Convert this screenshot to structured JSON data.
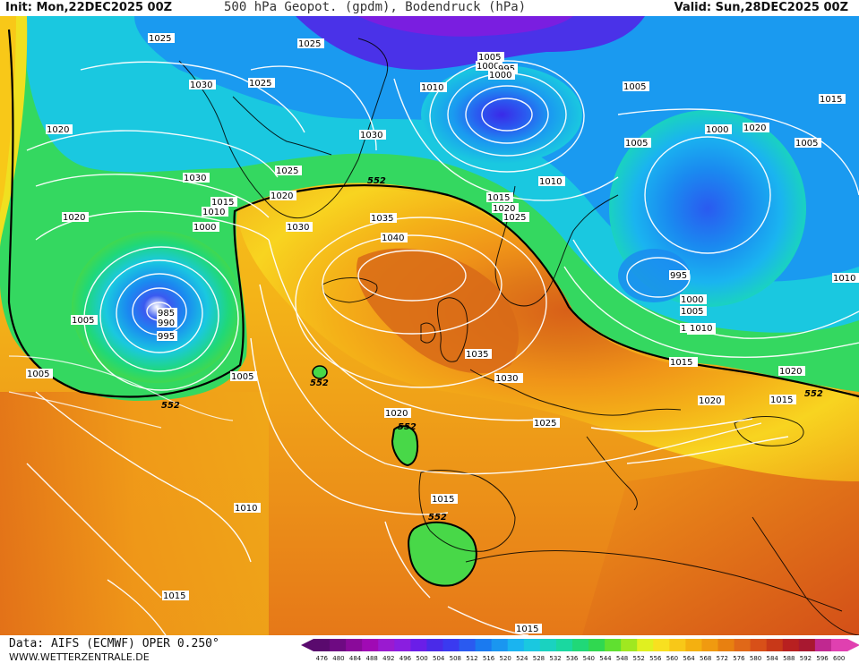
{
  "header": {
    "init": "Init: Mon,22DEC2025 00Z",
    "title": "500 hPa Geopot. (gpdm), Bodendruck (hPa)",
    "valid": "Valid: Sun,28DEC2025 00Z"
  },
  "footer": {
    "data_source": "Data: AIFS (ECMWF) OPER 0.250°",
    "website": "WWW.WETTERZENTRALE.DE"
  },
  "legend": {
    "ticks": [
      "476",
      "480",
      "484",
      "488",
      "492",
      "496",
      "500",
      "504",
      "508",
      "512",
      "516",
      "520",
      "524",
      "528",
      "532",
      "536",
      "540",
      "544",
      "548",
      "552",
      "556",
      "560",
      "564",
      "568",
      "572",
      "576",
      "580",
      "584",
      "588",
      "592",
      "596",
      "600"
    ],
    "colors": [
      "#5a0a6e",
      "#6e0a82",
      "#8a0a9a",
      "#a00ab4",
      "#9a1ad0",
      "#8a1ee0",
      "#6a1ee8",
      "#4a2ae8",
      "#3a3af0",
      "#2a5af0",
      "#1a7af0",
      "#1a96f0",
      "#1ab4f0",
      "#1ac8e0",
      "#1ad2c0",
      "#1ad8a0",
      "#20d878",
      "#30d850",
      "#60e030",
      "#a0e820",
      "#e0f020",
      "#f8e020",
      "#f8c818",
      "#f4b010",
      "#f09a10",
      "#e88010",
      "#e06818",
      "#d85018",
      "#c83818",
      "#b82020",
      "#a81830",
      "#c02890",
      "#e040b0"
    ]
  },
  "map": {
    "isobar_labels": [
      {
        "text": "1025"
      },
      {
        "text": "1025"
      },
      {
        "text": "1030"
      },
      {
        "text": "1025"
      },
      {
        "text": "1020"
      },
      {
        "text": "1030"
      },
      {
        "text": "1030"
      },
      {
        "text": "1025"
      },
      {
        "text": "1015"
      },
      {
        "text": "1010"
      },
      {
        "text": "1000"
      },
      {
        "text": "1020"
      },
      {
        "text": "1030"
      },
      {
        "text": "1020"
      },
      {
        "text": "985"
      },
      {
        "text": "990"
      },
      {
        "text": "995"
      },
      {
        "text": "1005"
      },
      {
        "text": "1005"
      },
      {
        "text": "1005"
      },
      {
        "text": "1010"
      },
      {
        "text": "1005"
      },
      {
        "text": "1000"
      },
      {
        "text": "995"
      },
      {
        "text": "1010"
      },
      {
        "text": "1010"
      },
      {
        "text": "1005"
      },
      {
        "text": "1005"
      },
      {
        "text": "1010"
      },
      {
        "text": "1015"
      },
      {
        "text": "1020"
      },
      {
        "text": "1025"
      },
      {
        "text": "1030"
      },
      {
        "text": "1035"
      },
      {
        "text": "1040"
      },
      {
        "text": "1035"
      },
      {
        "text": "1030"
      },
      {
        "text": "1025"
      },
      {
        "text": "1020"
      },
      {
        "text": "1015"
      },
      {
        "text": "1010"
      },
      {
        "text": "1015"
      },
      {
        "text": "1015"
      },
      {
        "text": "1000"
      },
      {
        "text": "1005"
      },
      {
        "text": "1010"
      },
      {
        "text": "1000"
      },
      {
        "text": "995"
      },
      {
        "text": "1000"
      },
      {
        "text": "1005"
      },
      {
        "text": "1010"
      },
      {
        "text": "1015"
      },
      {
        "text": "1020"
      },
      {
        "text": "1020"
      },
      {
        "text": "1015"
      },
      {
        "text": "1020"
      },
      {
        "text": "1010"
      },
      {
        "text": "1015"
      },
      {
        "text": "1015"
      }
    ],
    "contour_552_labels": [
      {
        "text": "552"
      },
      {
        "text": "552"
      },
      {
        "text": "552"
      },
      {
        "text": "552"
      },
      {
        "text": "552"
      },
      {
        "text": "552"
      }
    ]
  }
}
